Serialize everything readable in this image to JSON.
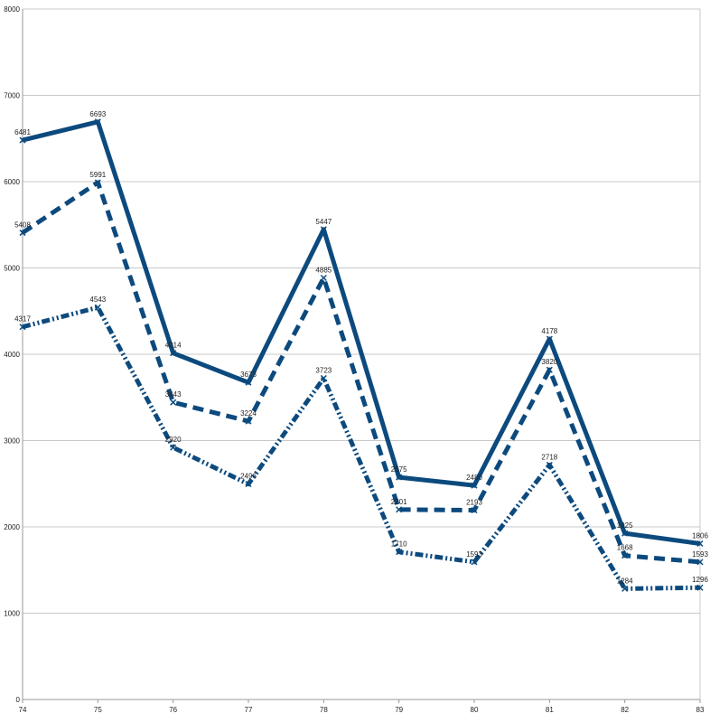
{
  "chart_data": {
    "type": "line",
    "title": "",
    "xlabel": "",
    "ylabel": "",
    "ylim": [
      0,
      8000
    ],
    "yticks": [
      0,
      1000,
      2000,
      3000,
      4000,
      5000,
      6000,
      7000,
      8000
    ],
    "grid": true,
    "legend": "none",
    "categories": [
      "74",
      "75",
      "76",
      "77",
      "78",
      "79",
      "80",
      "81",
      "82",
      "83"
    ],
    "series": [
      {
        "values": [
          6481,
          6693,
          4014,
          3673,
          5447,
          2575,
          2480,
          4178,
          1925,
          1806
        ],
        "value_labels": [
          "6481",
          "6693",
          "4014",
          "3673",
          "5447",
          "2575",
          "2480",
          "4178",
          "1925",
          "1806"
        ],
        "color": "#0c4a7e",
        "style": "solid"
      },
      {
        "values": [
          5408,
          5991,
          3443,
          3224,
          4885,
          2201,
          2193,
          3820,
          1668,
          1593
        ],
        "value_labels": [
          "5408",
          "5991",
          "3443",
          "3224",
          "4885",
          "2201",
          "2193",
          "3820",
          "1668",
          "1593"
        ],
        "color": "#0c4a7e",
        "style": "dashed"
      },
      {
        "values": [
          4317,
          4543,
          2920,
          2496,
          3723,
          1710,
          1593,
          2718,
          1284,
          1296
        ],
        "value_labels": [
          "4317",
          "4543",
          "2920",
          "2496",
          "3723",
          "1710",
          "1593",
          "2718",
          "1284",
          "1296"
        ],
        "color": "#0c4a7e",
        "style": "dashdot"
      }
    ]
  }
}
